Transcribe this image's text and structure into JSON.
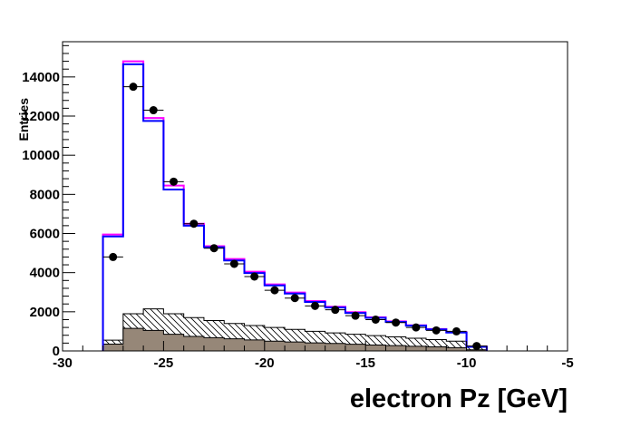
{
  "chart_data": {
    "type": "histogram",
    "title": "",
    "xlabel": "electron Pz [GeV]",
    "ylabel": "Entries",
    "xlim": [
      -30,
      -5
    ],
    "ylim": [
      0,
      15800
    ],
    "x_ticks": [
      -30,
      -25,
      -20,
      -15,
      -10,
      -5
    ],
    "x_tick_labels": [
      "-30",
      "-25",
      "-20",
      "-15",
      "-10",
      "-5"
    ],
    "y_ticks": [
      0,
      2000,
      4000,
      6000,
      8000,
      10000,
      12000,
      14000
    ],
    "y_tick_labels": [
      "0",
      "2000",
      "4000",
      "6000",
      "8000",
      "10000",
      "12000",
      "14000"
    ],
    "grid": false,
    "bin_edges": [
      -28,
      -27,
      -26,
      -25,
      -24,
      -23,
      -22,
      -21,
      -20,
      -19,
      -18,
      -17,
      -16,
      -15,
      -14,
      -13,
      -12,
      -11,
      -10,
      -9
    ],
    "series": [
      {
        "style": "step-line",
        "color": "#ff00ff",
        "values": [
          5950,
          14800,
          11900,
          8450,
          6500,
          5350,
          4700,
          4050,
          3400,
          2980,
          2550,
          2260,
          1980,
          1720,
          1510,
          1310,
          1120,
          960,
          220
        ]
      },
      {
        "style": "step-line",
        "color": "#0000ff",
        "values": [
          5850,
          14650,
          11750,
          8250,
          6400,
          5300,
          4620,
          3980,
          3350,
          2930,
          2500,
          2220,
          1940,
          1690,
          1480,
          1290,
          1100,
          940,
          210
        ]
      },
      {
        "style": "hatched-fill",
        "color": "#000000",
        "values": [
          550,
          1900,
          2150,
          1900,
          1700,
          1550,
          1400,
          1300,
          1200,
          1100,
          1000,
          920,
          850,
          780,
          720,
          650,
          580,
          500,
          250
        ]
      },
      {
        "style": "solid-fill",
        "color": "#968778",
        "values": [
          350,
          1150,
          1050,
          850,
          740,
          680,
          620,
          560,
          500,
          460,
          410,
          380,
          340,
          300,
          270,
          240,
          210,
          170,
          60
        ]
      }
    ],
    "points": {
      "style": "markers-with-x-error",
      "color": "#000000",
      "x": [
        -27.5,
        -26.5,
        -25.5,
        -24.5,
        -23.5,
        -22.5,
        -21.5,
        -20.5,
        -19.5,
        -18.5,
        -17.5,
        -16.5,
        -15.5,
        -14.5,
        -13.5,
        -12.5,
        -11.5,
        -10.5,
        -9.5
      ],
      "y": [
        4800,
        13500,
        12300,
        8650,
        6500,
        5250,
        4450,
        3800,
        3100,
        2700,
        2300,
        2100,
        1800,
        1600,
        1450,
        1200,
        1050,
        1000,
        250
      ]
    }
  }
}
